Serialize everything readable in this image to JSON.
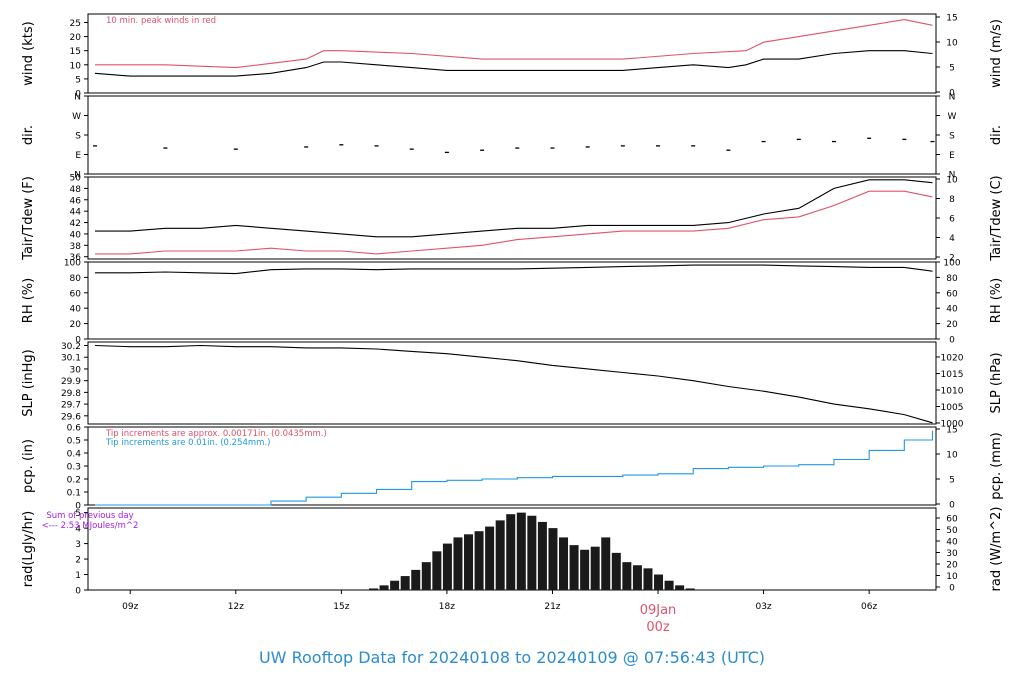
{
  "title": "UW Rooftop Data for 20240108  to  20240109 @ 07:56:43  (UTC)",
  "colors": {
    "primary": "#000000",
    "peak": "#df536b",
    "precip": "#2297e6",
    "sum_note": "#a020f0"
  },
  "x_axis": {
    "ticks": [
      "09z",
      "12z",
      "15z",
      "18z",
      "21z",
      "00z",
      "03z",
      "06z"
    ],
    "date_label": "09Jan",
    "date_color": "#df536b"
  },
  "chart_data": [
    {
      "type": "line",
      "panel": "wind",
      "ylabel": "wind (kts)",
      "ylabel_right": "wind (m/s)",
      "yticks": [
        0,
        5,
        10,
        15,
        20,
        25
      ],
      "yticks_right": [
        0,
        5,
        10,
        15
      ],
      "ylim": [
        0,
        28
      ],
      "annotation": "10 min. peak winds in red",
      "series": [
        {
          "color": "#000000",
          "x": [
            8.0,
            9.0,
            10.0,
            11.0,
            12.0,
            13.0,
            14.0,
            14.5,
            15.0,
            16.0,
            17.0,
            18.0,
            19.0,
            20.0,
            21.0,
            22.0,
            23.0,
            24.0,
            25.0,
            26.0,
            26.5,
            27.0,
            28.0,
            29.0,
            30.0,
            31.0,
            31.8
          ],
          "y": [
            7,
            6,
            6,
            6,
            6,
            7,
            9,
            11,
            11,
            10,
            9,
            8,
            8,
            8,
            8,
            8,
            8,
            9,
            10,
            9,
            10,
            12,
            12,
            14,
            15,
            15,
            14
          ]
        },
        {
          "color": "#df536b",
          "x": [
            8.0,
            10.0,
            12.0,
            14.0,
            14.5,
            15.0,
            17.0,
            19.0,
            21.0,
            23.0,
            25.0,
            26.5,
            27.0,
            28.0,
            29.0,
            30.0,
            31.0,
            31.8
          ],
          "y": [
            10,
            10,
            9,
            12,
            15,
            15,
            14,
            12,
            12,
            12,
            14,
            15,
            18,
            20,
            22,
            24,
            26,
            24
          ]
        }
      ]
    },
    {
      "type": "scatter",
      "panel": "dir",
      "ylabel": "dir.",
      "ylabel_right": "dir.",
      "yticks": [
        "N",
        "E",
        "S",
        "W",
        "N"
      ],
      "yvalues": [
        0,
        90,
        180,
        270,
        360
      ],
      "ylim": [
        0,
        360
      ],
      "series": [
        {
          "color": "#000000",
          "x": [
            8.0,
            10.0,
            12.0,
            14.0,
            15.0,
            16.0,
            17.0,
            18.0,
            19.0,
            20.0,
            21.0,
            22.0,
            23.0,
            24.0,
            25.0,
            26.0,
            27.0,
            28.0,
            29.0,
            30.0,
            31.0,
            31.8
          ],
          "y": [
            130,
            120,
            115,
            125,
            135,
            130,
            115,
            100,
            110,
            120,
            120,
            125,
            130,
            130,
            130,
            110,
            150,
            160,
            150,
            165,
            160,
            150
          ]
        }
      ]
    },
    {
      "type": "line",
      "panel": "temp",
      "ylabel": "Tair/Tdew (F)",
      "ylabel_right": "Tair/Tdew (C)",
      "yticks": [
        36,
        38,
        40,
        42,
        44,
        46,
        48,
        50
      ],
      "yticks_right": [
        2,
        4,
        6,
        8,
        10
      ],
      "ylim": [
        35.6,
        50
      ],
      "series": [
        {
          "color": "#000000",
          "x": [
            8.0,
            9.0,
            10.0,
            11.0,
            12.0,
            13.0,
            14.0,
            15.0,
            16.0,
            17.0,
            18.0,
            19.0,
            20.0,
            21.0,
            22.0,
            23.0,
            24.0,
            25.0,
            26.0,
            27.0,
            28.0,
            29.0,
            30.0,
            31.0,
            31.8
          ],
          "y": [
            40.5,
            40.5,
            41,
            41,
            41.5,
            41,
            40.5,
            40,
            39.5,
            39.5,
            40,
            40.5,
            41,
            41,
            41.5,
            41.5,
            41.5,
            41.5,
            42,
            43.5,
            44.5,
            48,
            49.5,
            49.5,
            49
          ]
        },
        {
          "color": "#df536b",
          "x": [
            8.0,
            9.0,
            10.0,
            11.0,
            12.0,
            13.0,
            14.0,
            15.0,
            16.0,
            17.0,
            18.0,
            19.0,
            20.0,
            21.0,
            22.0,
            23.0,
            24.0,
            25.0,
            26.0,
            27.0,
            28.0,
            29.0,
            30.0,
            31.0,
            31.8
          ],
          "y": [
            36.5,
            36.5,
            37,
            37,
            37,
            37.5,
            37,
            37,
            36.5,
            37,
            37.5,
            38,
            39,
            39.5,
            40,
            40.5,
            40.5,
            40.5,
            41,
            42.5,
            43,
            45,
            47.5,
            47.5,
            46.5
          ]
        }
      ]
    },
    {
      "type": "line",
      "panel": "rh",
      "ylabel": "RH (%)",
      "ylabel_right": "RH (%)",
      "yticks": [
        0,
        20,
        40,
        60,
        80,
        100
      ],
      "yticks_right": [
        0,
        20,
        40,
        60,
        80,
        100
      ],
      "ylim": [
        0,
        100
      ],
      "series": [
        {
          "color": "#000000",
          "x": [
            8.0,
            9.0,
            10.0,
            11.0,
            12.0,
            13.0,
            14.0,
            15.0,
            16.0,
            17.0,
            18.0,
            19.0,
            20.0,
            21.0,
            22.0,
            23.0,
            24.0,
            25.0,
            26.0,
            27.0,
            28.0,
            29.0,
            30.0,
            31.0,
            31.8
          ],
          "y": [
            86,
            86,
            87,
            86,
            85,
            90,
            91,
            91,
            90,
            91,
            91,
            91,
            91,
            92,
            93,
            94,
            95,
            96,
            96,
            96,
            95,
            94,
            93,
            93,
            88
          ]
        }
      ]
    },
    {
      "type": "line",
      "panel": "slp",
      "ylabel": "SLP (inHg)",
      "ylabel_right": "SLP (hPa)",
      "yticks": [
        29.6,
        29.7,
        29.8,
        29.9,
        30.0,
        30.1,
        30.2
      ],
      "yticks_right": [
        1000,
        1005,
        1010,
        1015,
        1020
      ],
      "ylim": [
        29.53,
        30.23
      ],
      "series": [
        {
          "color": "#000000",
          "x": [
            8.0,
            9.0,
            10.0,
            11.0,
            12.0,
            13.0,
            14.0,
            15.0,
            16.0,
            17.0,
            18.0,
            19.0,
            20.0,
            21.0,
            22.0,
            23.0,
            24.0,
            25.0,
            26.0,
            27.0,
            28.0,
            29.0,
            30.0,
            31.0,
            31.8
          ],
          "y": [
            30.2,
            30.19,
            30.19,
            30.2,
            30.19,
            30.19,
            30.18,
            30.18,
            30.17,
            30.15,
            30.13,
            30.1,
            30.07,
            30.03,
            30.0,
            29.97,
            29.94,
            29.9,
            29.85,
            29.81,
            29.76,
            29.7,
            29.66,
            29.61,
            29.54
          ]
        }
      ]
    },
    {
      "type": "area",
      "panel": "pcp",
      "ylabel": "pcp. (in)",
      "ylabel_right": "pcp. (mm)",
      "yticks": [
        0.0,
        0.1,
        0.2,
        0.3,
        0.4,
        0.5,
        0.6
      ],
      "yticks_right": [
        0,
        5,
        10,
        15
      ],
      "ylim": [
        0,
        0.6
      ],
      "annotations": [
        "Tip increments are approx. 0.00171in. (0.0435mm.)",
        "Tip increments are 0.01in. (0.254mm.)"
      ],
      "series": [
        {
          "color": "#2297e6",
          "x": [
            8.0,
            9.0,
            10.0,
            11.0,
            12.0,
            13.0,
            14.0,
            15.0,
            16.0,
            17.0,
            18.0,
            19.0,
            20.0,
            21.0,
            22.0,
            23.0,
            24.0,
            25.0,
            26.0,
            27.0,
            28.0,
            29.0,
            30.0,
            31.0,
            31.8
          ],
          "y": [
            0,
            0,
            0,
            0,
            0,
            0.03,
            0.06,
            0.09,
            0.12,
            0.18,
            0.19,
            0.2,
            0.21,
            0.22,
            0.22,
            0.23,
            0.24,
            0.28,
            0.29,
            0.3,
            0.31,
            0.35,
            0.42,
            0.5,
            0.57
          ]
        }
      ]
    },
    {
      "type": "bar",
      "panel": "rad",
      "ylabel": "rad(Lgly/hr)",
      "ylabel_right": "rad (W/m^2)",
      "yticks": [
        0,
        1,
        2,
        3,
        4,
        5
      ],
      "yticks_right": [
        0,
        10,
        20,
        30,
        40,
        50,
        60
      ],
      "ylim": [
        0,
        5.3
      ],
      "annotation_lines": [
        "Sum of previous day",
        "<--- 2.53 MJoules/m^2"
      ],
      "series": [
        {
          "color": "#1a1a1a",
          "x": [
            15.9,
            16.2,
            16.5,
            16.8,
            17.1,
            17.4,
            17.7,
            18.0,
            18.3,
            18.6,
            18.9,
            19.2,
            19.5,
            19.8,
            20.1,
            20.4,
            20.7,
            21.0,
            21.3,
            21.6,
            21.9,
            22.2,
            22.5,
            22.8,
            23.1,
            23.4,
            23.7,
            24.0,
            24.3,
            24.6,
            24.9
          ],
          "y": [
            0.1,
            0.3,
            0.6,
            0.9,
            1.3,
            1.8,
            2.5,
            3.0,
            3.4,
            3.6,
            3.8,
            4.1,
            4.5,
            4.9,
            5.0,
            4.8,
            4.4,
            4.0,
            3.4,
            2.9,
            2.6,
            2.8,
            3.4,
            2.4,
            1.8,
            1.6,
            1.4,
            1.0,
            0.6,
            0.3,
            0.1
          ]
        }
      ]
    }
  ]
}
